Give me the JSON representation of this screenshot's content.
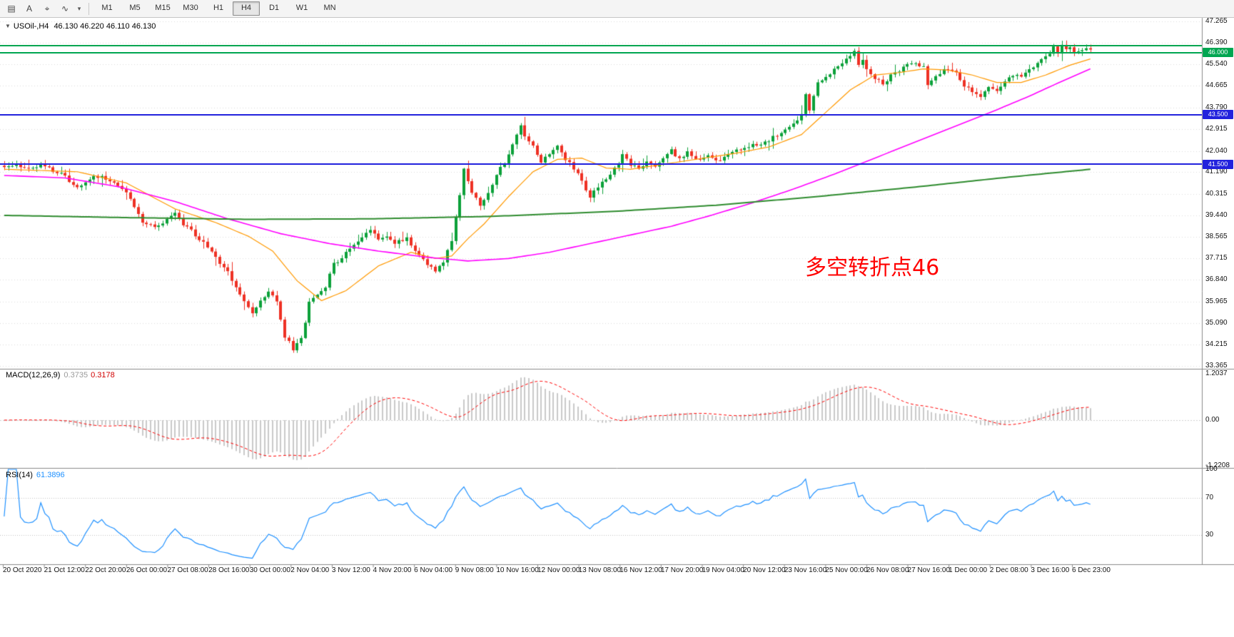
{
  "toolbar": {
    "icons": [
      {
        "name": "bar-chart-icon",
        "glyph": "▤"
      },
      {
        "name": "text-tool-icon",
        "glyph": "A"
      },
      {
        "name": "crosshair-icon",
        "glyph": "⌖"
      },
      {
        "name": "indicators-icon",
        "glyph": "∿"
      },
      {
        "name": "indicators-dropdown-caret",
        "glyph": "▾"
      }
    ],
    "timeframes": [
      {
        "label": "M1",
        "active": false
      },
      {
        "label": "M5",
        "active": false
      },
      {
        "label": "M15",
        "active": false
      },
      {
        "label": "M30",
        "active": false
      },
      {
        "label": "H1",
        "active": false
      },
      {
        "label": "H4",
        "active": true
      },
      {
        "label": "D1",
        "active": false
      },
      {
        "label": "W1",
        "active": false
      },
      {
        "label": "MN",
        "active": false
      }
    ]
  },
  "header": {
    "collapse_glyph": "▼",
    "symbol_period": "USOil-,H4",
    "ohlc": "46.130 46.220 46.110 46.130"
  },
  "annotation": {
    "text": "多空转折点46",
    "color": "#ff0000"
  },
  "macd": {
    "label": "MACD(12,26,9)",
    "value_main": "0.3735",
    "value_signal": "0.3178",
    "axis_labels": [
      "1.2037",
      "0.00",
      "-1.2208"
    ]
  },
  "rsi": {
    "label": "RSI(14)",
    "value": "61.3896",
    "axis_labels": [
      "100",
      "70",
      "30"
    ],
    "levels": [
      70,
      30
    ]
  },
  "chart_data": {
    "type": "candlestick",
    "symbol": "USOil",
    "timeframe": "H4",
    "bars": 268,
    "price_axis": {
      "max_label": 47.265,
      "min_label": 33.365,
      "labels": [
        "47.265",
        "46.390",
        "45.540",
        "44.665",
        "43.790",
        "42.915",
        "42.040",
        "41.190",
        "40.315",
        "39.440",
        "38.565",
        "37.715",
        "36.840",
        "35.965",
        "35.090",
        "34.215",
        "33.365"
      ]
    },
    "x_axis_labels": [
      "20 Oct 2020",
      "21 Oct 12:00",
      "22 Oct 20:00",
      "26 Oct 00:00",
      "27 Oct 08:00",
      "28 Oct 16:00",
      "30 Oct 00:00",
      "2 Nov 04:00",
      "3 Nov 12:00",
      "4 Nov 20:00",
      "6 Nov 04:00",
      "9 Nov 08:00",
      "10 Nov 16:00",
      "12 Nov 00:00",
      "13 Nov 08:00",
      "16 Nov 12:00",
      "17 Nov 20:00",
      "19 Nov 04:00",
      "20 Nov 12:00",
      "23 Nov 16:00",
      "25 Nov 00:00",
      "26 Nov 08:00",
      "27 Nov 16:00",
      "1 Dec 00:00",
      "2 Dec 08:00",
      "3 Dec 16:00",
      "6 Dec 23:00"
    ],
    "hlines": [
      {
        "price": 46.3,
        "color": "#00a651",
        "width": 2,
        "label": null
      },
      {
        "price": 46.0,
        "color": "#00a651",
        "width": 2,
        "label": "46.000"
      },
      {
        "price": 43.5,
        "color": "#2222dd",
        "width": 2,
        "label": "43.500"
      },
      {
        "price": 41.5,
        "color": "#2222dd",
        "width": 2,
        "label": "41.500"
      }
    ],
    "close_path": [
      [
        0,
        41.35
      ],
      [
        3,
        41.5
      ],
      [
        6,
        41.3
      ],
      [
        9,
        41.45
      ],
      [
        12,
        41.25
      ],
      [
        15,
        41.0
      ],
      [
        18,
        40.55
      ],
      [
        21,
        40.9
      ],
      [
        24,
        41.05
      ],
      [
        27,
        40.7
      ],
      [
        30,
        40.35
      ],
      [
        32,
        39.8
      ],
      [
        34,
        39.2
      ],
      [
        37,
        38.95
      ],
      [
        40,
        39.3
      ],
      [
        42,
        39.55
      ],
      [
        44,
        39.1
      ],
      [
        47,
        38.65
      ],
      [
        50,
        38.15
      ],
      [
        53,
        37.55
      ],
      [
        55,
        37.15
      ],
      [
        57,
        36.6
      ],
      [
        59,
        35.95
      ],
      [
        61,
        35.45
      ],
      [
        63,
        35.95
      ],
      [
        65,
        36.35
      ],
      [
        67,
        35.95
      ],
      [
        69,
        34.55
      ],
      [
        71,
        34.05
      ],
      [
        73,
        34.45
      ],
      [
        75,
        35.9
      ],
      [
        77,
        36.3
      ],
      [
        79,
        36.6
      ],
      [
        81,
        37.45
      ],
      [
        84,
        37.9
      ],
      [
        87,
        38.35
      ],
      [
        90,
        38.85
      ],
      [
        92,
        38.45
      ],
      [
        94,
        38.65
      ],
      [
        96,
        38.3
      ],
      [
        99,
        38.55
      ],
      [
        101,
        37.95
      ],
      [
        104,
        37.5
      ],
      [
        106,
        37.15
      ],
      [
        108,
        37.6
      ],
      [
        110,
        38.45
      ],
      [
        112,
        40.3
      ],
      [
        113,
        41.25
      ],
      [
        115,
        40.35
      ],
      [
        117,
        39.8
      ],
      [
        119,
        40.35
      ],
      [
        121,
        41.05
      ],
      [
        123,
        41.6
      ],
      [
        125,
        42.3
      ],
      [
        127,
        43.05
      ],
      [
        128,
        42.6
      ],
      [
        130,
        42.25
      ],
      [
        132,
        41.6
      ],
      [
        134,
        41.95
      ],
      [
        136,
        42.25
      ],
      [
        138,
        41.7
      ],
      [
        140,
        41.35
      ],
      [
        142,
        40.8
      ],
      [
        144,
        40.2
      ],
      [
        146,
        40.55
      ],
      [
        148,
        40.95
      ],
      [
        150,
        41.35
      ],
      [
        152,
        41.85
      ],
      [
        154,
        41.5
      ],
      [
        156,
        41.3
      ],
      [
        158,
        41.6
      ],
      [
        160,
        41.45
      ],
      [
        162,
        41.75
      ],
      [
        164,
        42.05
      ],
      [
        166,
        41.7
      ],
      [
        168,
        41.95
      ],
      [
        170,
        41.7
      ],
      [
        173,
        41.85
      ],
      [
        176,
        41.65
      ],
      [
        179,
        42.0
      ],
      [
        182,
        42.15
      ],
      [
        185,
        42.3
      ],
      [
        188,
        42.5
      ],
      [
        191,
        42.75
      ],
      [
        194,
        43.1
      ],
      [
        196,
        43.5
      ],
      [
        197,
        44.4
      ],
      [
        198,
        43.65
      ],
      [
        200,
        44.85
      ],
      [
        202,
        45.05
      ],
      [
        204,
        45.3
      ],
      [
        206,
        45.55
      ],
      [
        208,
        45.9
      ],
      [
        209,
        46.15
      ],
      [
        210,
        45.45
      ],
      [
        211,
        45.7
      ],
      [
        212,
        45.3
      ],
      [
        214,
        45.0
      ],
      [
        216,
        44.8
      ],
      [
        218,
        45.05
      ],
      [
        220,
        45.25
      ],
      [
        222,
        45.5
      ],
      [
        224,
        45.6
      ],
      [
        226,
        45.4
      ],
      [
        227,
        44.7
      ],
      [
        229,
        45.1
      ],
      [
        231,
        45.3
      ],
      [
        234,
        45.15
      ],
      [
        236,
        44.7
      ],
      [
        238,
        44.4
      ],
      [
        240,
        44.25
      ],
      [
        242,
        44.6
      ],
      [
        244,
        44.5
      ],
      [
        246,
        44.9
      ],
      [
        248,
        45.1
      ],
      [
        250,
        45.0
      ],
      [
        252,
        45.3
      ],
      [
        254,
        45.6
      ],
      [
        256,
        45.85
      ],
      [
        258,
        46.2
      ],
      [
        259,
        45.9
      ],
      [
        260,
        46.3
      ],
      [
        261,
        46.1
      ],
      [
        262,
        46.25
      ],
      [
        263,
        45.95
      ],
      [
        264,
        46.1
      ],
      [
        265,
        46.05
      ],
      [
        266,
        46.15
      ],
      [
        267,
        46.13
      ]
    ],
    "moving_averages": [
      {
        "name": "ma-fast",
        "color": "#ff9900",
        "width": 1.2,
        "points": [
          [
            0,
            41.3
          ],
          [
            18,
            41.2
          ],
          [
            30,
            40.75
          ],
          [
            42,
            39.7
          ],
          [
            52,
            39.15
          ],
          [
            60,
            38.6
          ],
          [
            66,
            38.0
          ],
          [
            72,
            36.8
          ],
          [
            78,
            36.0
          ],
          [
            84,
            36.4
          ],
          [
            92,
            37.4
          ],
          [
            100,
            37.95
          ],
          [
            106,
            37.7
          ],
          [
            110,
            37.8
          ],
          [
            114,
            38.5
          ],
          [
            118,
            39.1
          ],
          [
            124,
            40.2
          ],
          [
            130,
            41.2
          ],
          [
            136,
            41.7
          ],
          [
            142,
            41.75
          ],
          [
            148,
            41.35
          ],
          [
            154,
            41.3
          ],
          [
            160,
            41.45
          ],
          [
            166,
            41.6
          ],
          [
            172,
            41.75
          ],
          [
            180,
            41.95
          ],
          [
            188,
            42.2
          ],
          [
            196,
            42.7
          ],
          [
            202,
            43.6
          ],
          [
            208,
            44.5
          ],
          [
            214,
            45.1
          ],
          [
            220,
            45.2
          ],
          [
            226,
            45.35
          ],
          [
            232,
            45.3
          ],
          [
            238,
            45.1
          ],
          [
            244,
            44.8
          ],
          [
            250,
            44.8
          ],
          [
            256,
            45.1
          ],
          [
            262,
            45.5
          ],
          [
            267,
            45.75
          ]
        ]
      },
      {
        "name": "ma-mid",
        "color": "#ff00ff",
        "width": 1.6,
        "points": [
          [
            0,
            41.05
          ],
          [
            15,
            40.95
          ],
          [
            28,
            40.6
          ],
          [
            42,
            40.0
          ],
          [
            55,
            39.3
          ],
          [
            68,
            38.7
          ],
          [
            80,
            38.3
          ],
          [
            92,
            38.0
          ],
          [
            104,
            37.75
          ],
          [
            114,
            37.6
          ],
          [
            124,
            37.7
          ],
          [
            134,
            37.95
          ],
          [
            144,
            38.3
          ],
          [
            154,
            38.65
          ],
          [
            164,
            39.0
          ],
          [
            174,
            39.45
          ],
          [
            184,
            39.95
          ],
          [
            194,
            40.5
          ],
          [
            204,
            41.1
          ],
          [
            214,
            41.75
          ],
          [
            224,
            42.4
          ],
          [
            234,
            43.05
          ],
          [
            244,
            43.7
          ],
          [
            252,
            44.25
          ],
          [
            260,
            44.85
          ],
          [
            267,
            45.35
          ]
        ]
      },
      {
        "name": "ma-slow",
        "color": "#2e8b2e",
        "width": 2,
        "points": [
          [
            0,
            39.44
          ],
          [
            30,
            39.35
          ],
          [
            60,
            39.28
          ],
          [
            90,
            39.3
          ],
          [
            120,
            39.4
          ],
          [
            150,
            39.6
          ],
          [
            175,
            39.85
          ],
          [
            200,
            40.2
          ],
          [
            225,
            40.6
          ],
          [
            245,
            40.95
          ],
          [
            267,
            41.3
          ]
        ]
      }
    ],
    "colors": {
      "up": "#0ca13a",
      "down": "#ee3124",
      "macd_hist": "#c9c9c9",
      "macd_signal": "#ff0000",
      "rsi_line": "#1e90ff",
      "grid": "#dcdcdc"
    }
  }
}
